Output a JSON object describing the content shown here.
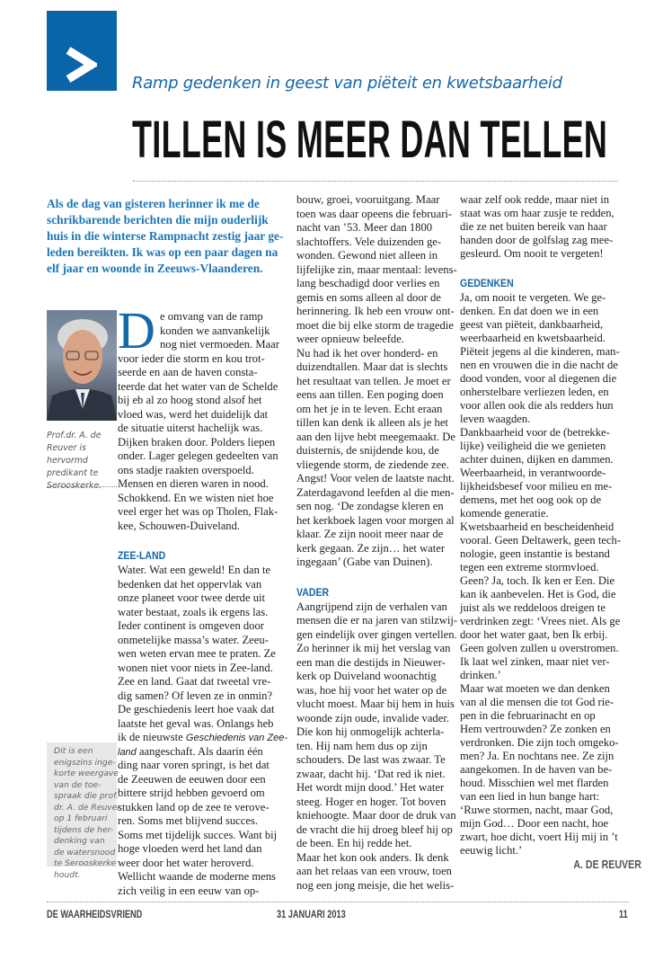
{
  "colors": {
    "accent": "#0a64a8",
    "heading": "#1467a8",
    "intro": "#1a76b6",
    "note_bg": "#e8e8e8"
  },
  "logo": {
    "icon": "chevron-right-icon"
  },
  "header": {
    "kicker": "Ramp gedenken in geest van piëteit en kwetsbaarheid",
    "title": "TILLEN IS MEER DAN TELLEN"
  },
  "intro": {
    "lines": [
      "Als de dag van gisteren herinner ik me de",
      "schrikbarende berichten die mijn ouderlijk",
      "huis in die winterse Rampnacht zestig jaar ge-",
      "leden bereikten. Ik was op een paar dagen na",
      "elf jaar en woonde in Zeeuws-Vlaanderen."
    ]
  },
  "photo_caption": {
    "lines": [
      "Prof.dr. A. de",
      "Reuver is hervormd",
      "predikant te",
      "Serooskerke."
    ]
  },
  "note": {
    "lines": [
      "Dit is een",
      "enigszins inge-",
      "korte weergave",
      "van de toe-",
      "spraak die prof.",
      "dr. A. de Reuver",
      "op 1 februari",
      "tijdens de her-",
      "denking van",
      "de watersnood",
      "te Serooskerke",
      "houdt."
    ]
  },
  "article": {
    "dropcap": "D",
    "columns": [
      {
        "blocks": [
          {
            "type": "p",
            "lines": [
              "e omvang van de ramp",
              "konden we aanvankelijk",
              "nog niet vermoeden. Maar",
              "voor ieder die storm en kou trot-",
              "seerde en aan de haven consta-",
              "teerde dat het water van de Schelde",
              "bij eb al zo hoog stond alsof het",
              "vloed was, werd het duidelijk dat",
              "de situatie uiterst hachelijk was.",
              "Dijken braken door. Polders liepen",
              "onder. Lager gelegen gedeelten van",
              "ons stadje raakten overspoeld.",
              "Mensen en dieren waren in nood.",
              "Schokkend. En we wisten niet hoe",
              "veel erger het was op Tholen, Flak-",
              "kee, Schouwen-Duiveland."
            ]
          },
          {
            "type": "h",
            "text": "ZEE-LAND"
          },
          {
            "type": "p",
            "lines": [
              "Water. Wat een geweld! En dan te",
              "bedenken dat het oppervlak van",
              "onze planeet voor twee derde uit",
              "water bestaat, zoals ik ergens las.",
              "Ieder continent is omgeven door",
              "onmetelijke massa’s water. Zeeu-",
              "wen weten ervan mee te praten. Ze",
              "wonen niet voor niets in Zee-land.",
              "Zee en land. Gaat dat tweetal vre-",
              "dig samen? Of leven ze in onmin?",
              "De geschiedenis leert hoe vaak dat",
              "laatste het geval was. Onlangs heb",
              {
                "parts": [
                  {
                    "t": "ik de nieuwste "
                  },
                  {
                    "t": "Geschiedenis van Zee-",
                    "i": true
                  }
                ]
              },
              {
                "parts": [
                  {
                    "t": "land",
                    "i": true
                  },
                  {
                    "t": " aangeschaft. Als daarin één"
                  }
                ]
              },
              "ding naar voren springt, is het dat",
              "de Zeeuwen de eeuwen door een",
              "bittere strijd hebben gevoerd om",
              "stukken land op de zee te verove-",
              "ren. Soms met blijvend succes.",
              "Soms met tijdelijk succes. Want bij",
              "hoge vloeden werd het land dan",
              "weer door het water heroverd.",
              "Wellicht waande de moderne mens",
              "zich veilig in een eeuw van op-"
            ]
          }
        ]
      },
      {
        "blocks": [
          {
            "type": "p",
            "lines": [
              "bouw, groei, vooruitgang. Maar",
              "toen was daar opeens die februari-",
              "nacht van ’53. Meer dan 1800",
              "slachtoffers. Vele duizenden ge-",
              "wonden. Gewond niet alleen in",
              "lijfelijke zin, maar mentaal: levens-",
              "lang beschadigd door verlies en",
              "gemis en soms alleen al door de",
              "herinnering. Ik heb een vrouw ont-",
              "moet die bij elke storm de tragedie",
              "weer opnieuw beleefde.",
              "Nu had ik het over honderd- en",
              "duizendtallen. Maar dat is slechts",
              "het resultaat van tellen. Je moet er",
              "eens aan tillen. Een poging doen",
              "om het je in te leven. Echt eraan",
              "tillen kan denk ik alleen als je het",
              "aan den lijve hebt meegemaakt. De",
              "duisternis, de snijdende kou, de",
              "vliegende storm, de ziedende zee.",
              "Angst! Voor velen de laatste nacht.",
              "Zaterdagavond leefden al die men-",
              "sen nog. ‘De zondagse kleren en",
              "het kerkboek lagen voor morgen al",
              "klaar. Ze zijn nooit meer naar de",
              "kerk gegaan. Ze zijn… het water",
              "ingegaan’ (Gabe van Duinen)."
            ]
          },
          {
            "type": "h",
            "text": "VADER"
          },
          {
            "type": "p",
            "lines": [
              "Aangrijpend zijn de verhalen van",
              "mensen die er na jaren van stilzwij-",
              "gen eindelijk over gingen vertellen.",
              "Zo herinner ik mij het verslag van",
              "een man die destijds in Nieuwer-",
              "kerk op Duiveland woonachtig",
              "was, hoe hij voor het water op de",
              "vlucht moest. Maar bij hem in huis",
              "woonde zijn oude, invalide vader.",
              "Die kon hij onmogelijk achterla-",
              "ten. Hij nam hem dus op zijn",
              "schouders. De last was zwaar. Te",
              "zwaar, dacht hij. ‘Dat red ik niet.",
              "Het wordt mijn dood.’ Het water",
              "steeg. Hoger en hoger. Tot boven",
              "kniehoogte. Maar door de druk van",
              "de vracht die hij droeg bleef hij op",
              "de been. En hij redde het.",
              "Maar het kon ook anders. Ik denk",
              "aan het relaas van een vrouw, toen",
              "nog een jong meisje, die het welis-"
            ]
          }
        ]
      },
      {
        "blocks": [
          {
            "type": "p",
            "lines": [
              "waar zelf ook redde, maar niet in",
              "staat was om haar zusje te redden,",
              "die ze net buiten bereik van haar",
              "handen door de golfslag zag mee-",
              "gesleurd. Om nooit te vergeten!"
            ]
          },
          {
            "type": "h",
            "text": "GEDENKEN"
          },
          {
            "type": "p",
            "lines": [
              "Ja, om nooit te vergeten. We ge-",
              "denken. En dat doen we in een",
              "geest van piëteit, dankbaarheid,",
              "weerbaarheid en kwetsbaarheid.",
              "Piëteit jegens al die kinderen, man-",
              "nen en vrouwen die in die nacht de",
              "dood vonden, voor al diegenen die",
              "onherstelbare verliezen leden, en",
              "voor allen ook die als redders hun",
              "leven waagden.",
              "Dankbaarheid voor de (betrekke-",
              "lijke) veiligheid die we genieten",
              "achter duinen, dijken en dammen.",
              "Weerbaarheid, in verantwoorde-",
              "lijkheidsbesef voor milieu en me-",
              "demens, met het oog ook op de",
              "komende generatie.",
              "Kwetsbaarheid en bescheidenheid",
              "vooral. Geen Deltawerk, geen tech-",
              "nologie, geen instantie is bestand",
              "tegen een extreme stormvloed.",
              "Geen? Ja, toch. Ik ken er Een. Die",
              "kan ik aanbevelen. Het is God, die",
              "juist als we reddeloos dreigen te",
              "verdrinken zegt: ‘Vrees niet. Als ge",
              "door het water gaat, ben Ik erbij.",
              "Geen golven zullen u overstromen.",
              "Ik laat wel zinken, maar niet ver-",
              "drinken.’",
              "Maar wat moeten we dan denken",
              "van al die mensen die tot God rie-",
              "pen in die februarinacht en op",
              "Hem vertrouwden? Ze zonken en",
              "verdronken. Die zijn toch omgeko-",
              "men? Ja. En nochtans nee. Ze zijn",
              "aangekomen. In de haven van be-",
              "houd. Misschien wel met flarden",
              "van een lied in hun bange hart:",
              "‘Ruwe stormen, nacht, maar God,",
              "mijn God… Door een nacht, hoe",
              "zwart, hoe dicht, voert Hij mij in ’t",
              "eeuwig licht.’"
            ]
          }
        ]
      }
    ],
    "signature": "A. DE REUVER"
  },
  "footer": {
    "publication": "DE WAARHEIDSVRIEND",
    "date": "31 JANUARI 2013",
    "page": "11"
  }
}
